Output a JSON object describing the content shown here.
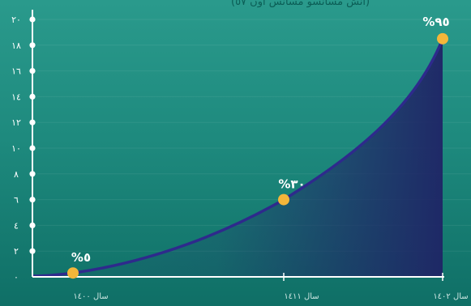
{
  "chart_data": {
    "type": "area",
    "title": "(انش مسانسو مسانس اوں ٥٧)",
    "y_ticks": [
      "٠",
      "٢",
      "٤",
      "٦",
      "٨",
      "١٠",
      "١٢",
      "١٤",
      "١٦",
      "١٨",
      "٢٠"
    ],
    "ylim": [
      0,
      20
    ],
    "x_ticks": [
      "سال ١٤٠٠",
      "سال ١٤١١",
      "سال ١٤٠٢"
    ],
    "points": [
      {
        "label": "%٥",
        "y": 0.3
      },
      {
        "label": "%٣٠",
        "y": 6
      },
      {
        "label": "%٩٥",
        "y": 18.5
      }
    ],
    "grid": true,
    "colors": {
      "curve": "#2e2a8c",
      "fill_dark": "#1f2466",
      "point": "#f4b63a",
      "axis": "#ffffff"
    }
  }
}
